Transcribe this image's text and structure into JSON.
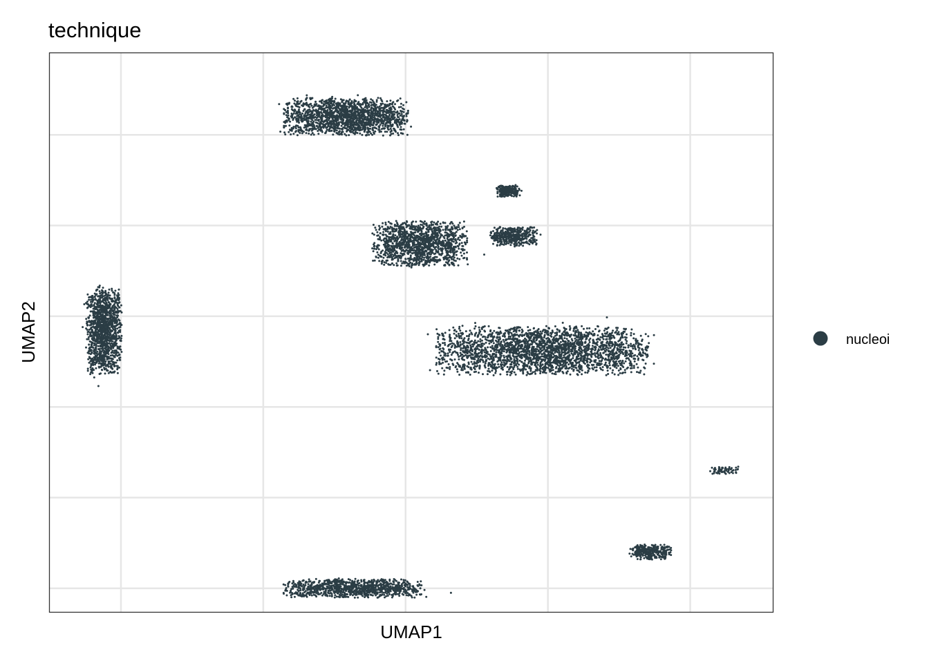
{
  "chart_data": {
    "type": "scatter",
    "title": "technique",
    "xlabel": "UMAP1",
    "ylabel": "UMAP2",
    "x_ticks_labeled": false,
    "y_ticks_labeled": false,
    "grid": true,
    "legend_position": "right",
    "legend": [
      {
        "label": "nucleoi",
        "color": "#2b3d45"
      }
    ],
    "point_color": "#2b3d45",
    "xlim": [
      -12.5,
      12.9
    ],
    "ylim": [
      -13.3,
      17.5
    ],
    "x_gridlines": [
      -10,
      -5,
      0,
      5,
      10
    ],
    "y_gridlines": [
      -12,
      -7,
      -2,
      3,
      8,
      13
    ],
    "clusters": [
      {
        "id": "c1",
        "center": [
          -10.6,
          2.2
        ],
        "spread": [
          0.6,
          2.3
        ],
        "points": 1300
      },
      {
        "id": "c2",
        "center": [
          -2.1,
          14.0
        ],
        "spread": [
          2.1,
          1.0
        ],
        "points": 1700
      },
      {
        "id": "c3",
        "center": [
          0.5,
          7.0
        ],
        "spread": [
          1.6,
          1.2
        ],
        "points": 1400
      },
      {
        "id": "c4",
        "center": [
          3.8,
          7.4
        ],
        "spread": [
          0.8,
          0.5
        ],
        "points": 400
      },
      {
        "id": "c5",
        "center": [
          3.6,
          9.9
        ],
        "spread": [
          0.4,
          0.3
        ],
        "points": 250
      },
      {
        "id": "c6",
        "center": [
          4.8,
          1.1
        ],
        "spread": [
          3.6,
          1.3
        ],
        "points": 2600
      },
      {
        "id": "c7",
        "center": [
          -1.8,
          -12.0
        ],
        "spread": [
          2.4,
          0.5
        ],
        "points": 1000
      },
      {
        "id": "c8",
        "center": [
          8.6,
          -10.0
        ],
        "spread": [
          0.7,
          0.4
        ],
        "points": 300
      },
      {
        "id": "c9",
        "center": [
          11.2,
          -5.5
        ],
        "spread": [
          0.5,
          0.2
        ],
        "points": 60
      }
    ]
  }
}
